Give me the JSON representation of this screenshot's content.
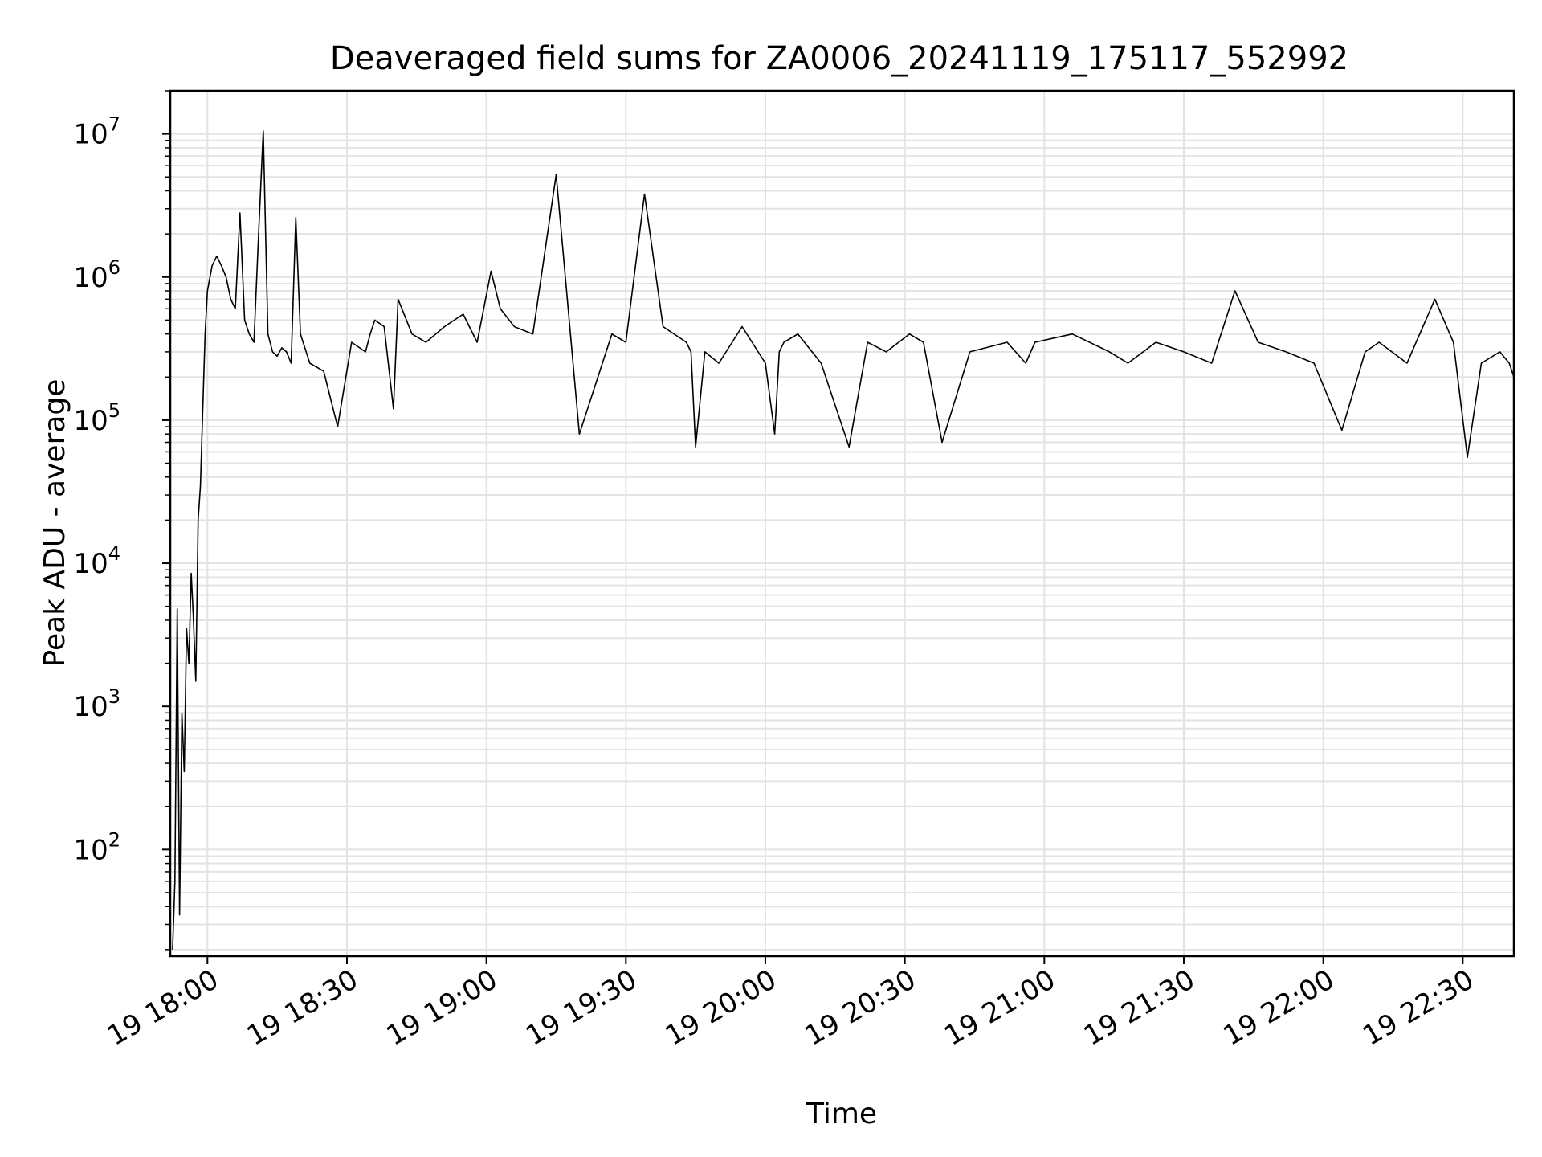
{
  "chart_data": {
    "type": "line",
    "title": "Deaveraged field sums for ZA0006_20241119_175117_552992",
    "xlabel": "Time",
    "ylabel": "Peak ADU - average",
    "yscale": "log",
    "ylim": [
      18,
      20000000
    ],
    "xlim": [
      "19 17:52",
      "22:41"
    ],
    "grid": true,
    "line_color": "#000000",
    "grid_color": "#e3e3e3",
    "x_ticks": [
      "19 18:00",
      "19 18:30",
      "19 19:00",
      "19 19:30",
      "19 20:00",
      "19 20:30",
      "19 21:00",
      "19 21:30",
      "19 22:00",
      "19 22:30"
    ],
    "y_ticks": [
      {
        "value": 100,
        "base": "10",
        "exp": "2"
      },
      {
        "value": 1000,
        "base": "10",
        "exp": "3"
      },
      {
        "value": 10000,
        "base": "10",
        "exp": "4"
      },
      {
        "value": 100000,
        "base": "10",
        "exp": "5"
      },
      {
        "value": 1000000,
        "base": "10",
        "exp": "6"
      },
      {
        "value": 10000000,
        "base": "10",
        "exp": "7"
      }
    ],
    "series": [
      {
        "x": [
          "17:52:30",
          "17:53:00",
          "17:53:30",
          "17:54:00",
          "17:54:30",
          "17:55:00",
          "17:55:30",
          "17:56:00",
          "17:56:30",
          "17:57:00",
          "17:57:30",
          "17:58:00",
          "17:58:30",
          "17:59:00",
          "17:59:30",
          "18:00:00",
          "18:01:00",
          "18:02:00",
          "18:03:00",
          "18:04:00",
          "18:05:00",
          "18:06:00",
          "18:07:00",
          "18:08:00",
          "18:09:00",
          "18:10:00",
          "18:11:00",
          "18:12:00",
          "18:13:00",
          "18:14:00",
          "18:15:00",
          "18:16:00",
          "18:17:00",
          "18:18:00",
          "18:19:00",
          "18:20:00",
          "18:22:00",
          "18:25:00",
          "18:28:00",
          "18:31:00",
          "18:34:00",
          "18:35:00",
          "18:36:00",
          "18:38:00",
          "18:40:00",
          "18:41:00",
          "18:44:00",
          "18:47:00",
          "18:51:00",
          "18:55:00",
          "18:58:00",
          "19:01:00",
          "19:03:00",
          "19:06:00",
          "19:10:00",
          "19:15:00",
          "19:20:00",
          "19:27:00",
          "19:30:00",
          "19:34:00",
          "19:38:00",
          "19:43:00",
          "19:44:00",
          "19:45:00",
          "19:47:00",
          "19:50:00",
          "19:55:00",
          "20:00:00",
          "20:02:00",
          "20:03:00",
          "20:04:00",
          "20:07:00",
          "20:12:00",
          "20:18:00",
          "20:22:00",
          "20:26:00",
          "20:31:00",
          "20:34:00",
          "20:38:00",
          "20:44:00",
          "20:52:00",
          "20:56:00",
          "20:58:00",
          "21:06:00",
          "21:14:00",
          "21:18:00",
          "21:24:00",
          "21:30:00",
          "21:36:00",
          "21:41:00",
          "21:46:00",
          "21:52:00",
          "21:58:00",
          "22:04:00",
          "22:09:00",
          "22:12:00",
          "22:18:00",
          "22:24:00",
          "22:28:00",
          "22:31:00",
          "22:34:00",
          "22:38:00",
          "22:40:00",
          "22:41:00"
        ],
        "y": [
          20,
          60,
          4800,
          35,
          900,
          350,
          3500,
          2000,
          8500,
          4000,
          1500,
          20000,
          35000,
          120000,
          400000,
          800000,
          1200000,
          1400000,
          1200000,
          1000000,
          700000,
          600000,
          2800000,
          500000,
          400000,
          350000,
          2000000,
          10500000,
          400000,
          300000,
          280000,
          320000,
          300000,
          250000,
          2600000,
          400000,
          250000,
          220000,
          90000,
          350000,
          300000,
          400000,
          500000,
          450000,
          120000,
          700000,
          400000,
          350000,
          450000,
          550000,
          350000,
          1100000,
          600000,
          450000,
          400000,
          5200000,
          80000,
          400000,
          350000,
          3800000,
          450000,
          350000,
          300000,
          65000,
          300000,
          250000,
          450000,
          250000,
          80000,
          300000,
          350000,
          400000,
          250000,
          65000,
          350000,
          300000,
          400000,
          350000,
          70000,
          300000,
          350000,
          250000,
          350000,
          400000,
          300000,
          250000,
          350000,
          300000,
          250000,
          800000,
          350000,
          300000,
          250000,
          85000,
          300000,
          350000,
          250000,
          700000,
          350000,
          55000,
          250000,
          300000,
          250000,
          200000
        ]
      }
    ]
  }
}
